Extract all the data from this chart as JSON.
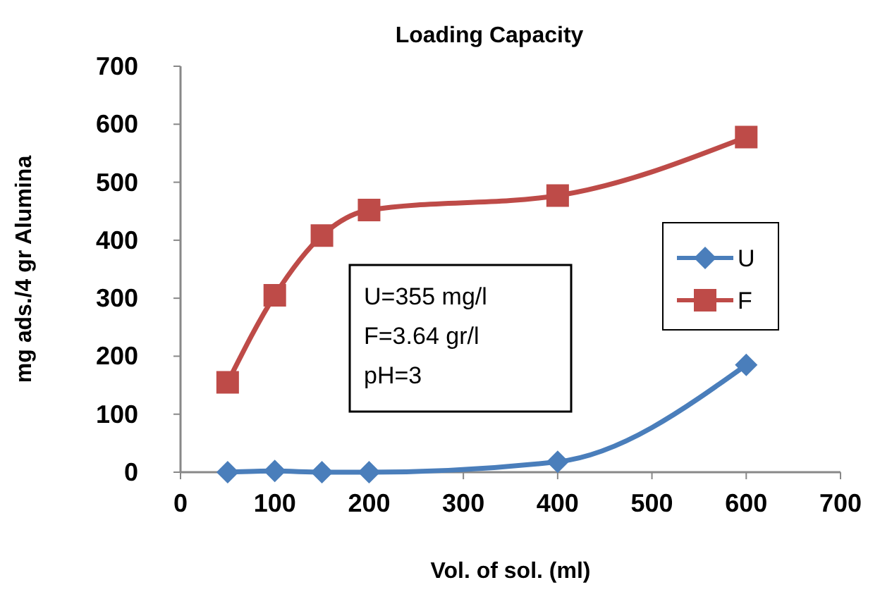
{
  "chart_data": {
    "type": "line",
    "title": "Loading Capacity",
    "xlabel": "Vol. of sol. (ml)",
    "ylabel": "mg ads./4 gr Alumina",
    "x": [
      50,
      100,
      150,
      200,
      400,
      600
    ],
    "series": [
      {
        "name": "U",
        "color": "#4a7ebb",
        "marker": "diamond",
        "values": [
          0,
          2,
          0,
          0,
          18,
          185
        ]
      },
      {
        "name": "F",
        "color": "#be4b48",
        "marker": "square",
        "values": [
          155,
          305,
          408,
          452,
          477,
          578
        ]
      }
    ],
    "xlim": [
      0,
      700
    ],
    "xticks": [
      0,
      100,
      200,
      300,
      400,
      500,
      600,
      700
    ],
    "ylim": [
      0,
      700
    ],
    "yticks": [
      0,
      100,
      200,
      300,
      400,
      500,
      600,
      700
    ],
    "grid": false,
    "legend": "right",
    "line_style": "solid",
    "annotations": [
      "U=355 mg/l",
      "F=3.64 gr/l",
      "pH=3"
    ]
  }
}
